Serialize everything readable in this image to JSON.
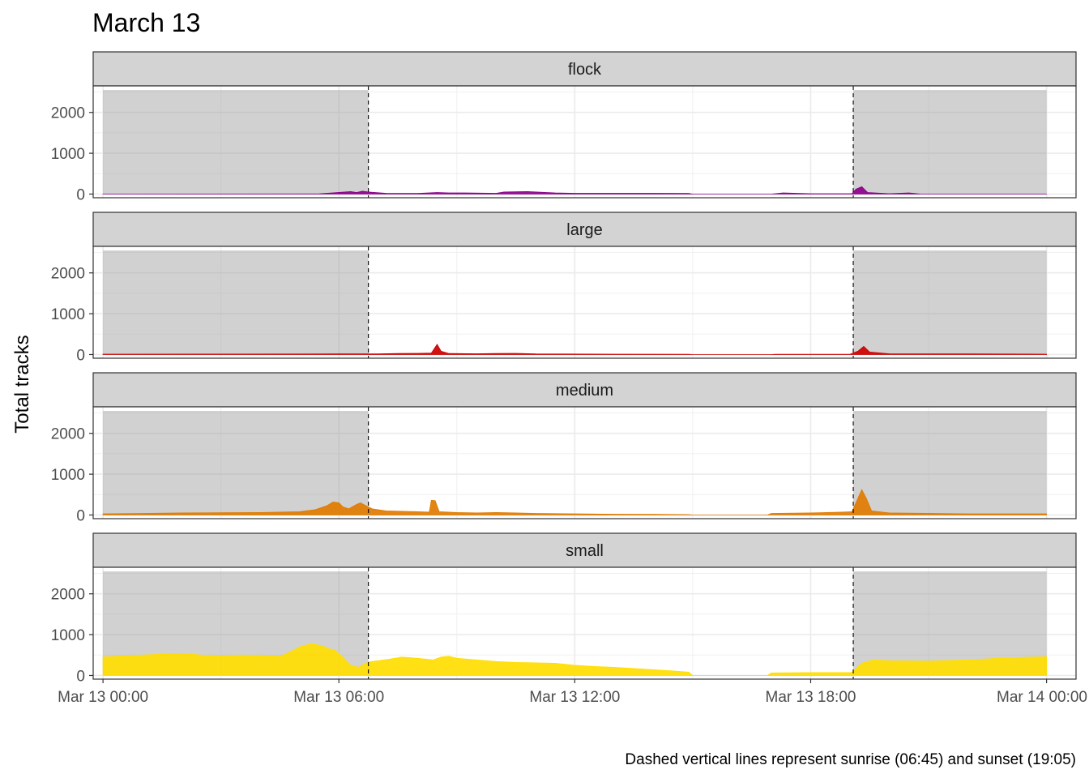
{
  "chart_data": {
    "type": "area",
    "title": "March 13",
    "ylabel": "Total tracks",
    "xlabel": "",
    "caption": "Dashed vertical lines represent sunrise (06:45) and sunset (19:05)",
    "x_unit": "hours",
    "xlim": [
      -0.25,
      24.75
    ],
    "ylim": [
      -90,
      2650
    ],
    "y_ticks": [
      0,
      1000,
      2000
    ],
    "x_ticks": [
      {
        "hour": 0,
        "label": "Mar 13 00:00"
      },
      {
        "hour": 6,
        "label": "Mar 13 06:00"
      },
      {
        "hour": 12,
        "label": "Mar 13 12:00"
      },
      {
        "hour": 18,
        "label": "Mar 13 18:00"
      },
      {
        "hour": 24,
        "label": "Mar 14 00:00"
      }
    ],
    "sunrise_hour": 6.75,
    "sunset_hour": 19.0833,
    "night_shade": [
      {
        "from": 0,
        "to": 6.75,
        "top": 2550
      },
      {
        "from": 19.0833,
        "to": 24,
        "top": 2550
      }
    ],
    "grid": true,
    "legend": "none",
    "facets": [
      {
        "name": "flock",
        "color": "#8b008b",
        "points": [
          [
            0,
            0
          ],
          [
            5.5,
            5
          ],
          [
            6.3,
            60
          ],
          [
            6.45,
            40
          ],
          [
            6.6,
            70
          ],
          [
            6.75,
            50
          ],
          [
            7.2,
            20
          ],
          [
            8,
            15
          ],
          [
            8.5,
            40
          ],
          [
            8.8,
            30
          ],
          [
            9.2,
            30
          ],
          [
            10,
            20
          ],
          [
            10.2,
            50
          ],
          [
            10.8,
            60
          ],
          [
            11.5,
            30
          ],
          [
            12,
            20
          ],
          [
            13,
            20
          ],
          [
            14,
            20
          ],
          [
            14.9,
            15
          ],
          [
            15,
            0
          ],
          [
            17,
            0
          ],
          [
            17.3,
            30
          ],
          [
            18,
            10
          ],
          [
            19.05,
            10
          ],
          [
            19.15,
            120
          ],
          [
            19.3,
            180
          ],
          [
            19.45,
            40
          ],
          [
            20,
            10
          ],
          [
            20.5,
            30
          ],
          [
            20.8,
            0
          ],
          [
            24,
            0
          ]
        ]
      },
      {
        "name": "large",
        "color": "#cc0000",
        "points": [
          [
            0,
            10
          ],
          [
            3,
            12
          ],
          [
            6,
            15
          ],
          [
            6.75,
            15
          ],
          [
            7,
            15
          ],
          [
            7.5,
            25
          ],
          [
            8,
            30
          ],
          [
            8.35,
            35
          ],
          [
            8.5,
            250
          ],
          [
            8.6,
            80
          ],
          [
            8.8,
            25
          ],
          [
            9.5,
            20
          ],
          [
            10,
            25
          ],
          [
            10.5,
            30
          ],
          [
            11,
            15
          ],
          [
            13,
            10
          ],
          [
            14.9,
            8
          ],
          [
            15,
            0
          ],
          [
            17,
            0
          ],
          [
            17.1,
            8
          ],
          [
            19,
            8
          ],
          [
            19.2,
            80
          ],
          [
            19.35,
            200
          ],
          [
            19.5,
            60
          ],
          [
            20,
            20
          ],
          [
            22,
            15
          ],
          [
            24,
            10
          ]
        ]
      },
      {
        "name": "medium",
        "color": "#e07b00",
        "points": [
          [
            0,
            30
          ],
          [
            1,
            40
          ],
          [
            2,
            50
          ],
          [
            3,
            55
          ],
          [
            4,
            60
          ],
          [
            5,
            80
          ],
          [
            5.4,
            130
          ],
          [
            5.7,
            230
          ],
          [
            5.85,
            320
          ],
          [
            6,
            300
          ],
          [
            6.1,
            200
          ],
          [
            6.25,
            150
          ],
          [
            6.45,
            260
          ],
          [
            6.55,
            300
          ],
          [
            6.7,
            220
          ],
          [
            6.85,
            150
          ],
          [
            7.2,
            100
          ],
          [
            7.6,
            90
          ],
          [
            8,
            80
          ],
          [
            8.3,
            70
          ],
          [
            8.35,
            360
          ],
          [
            8.45,
            350
          ],
          [
            8.55,
            80
          ],
          [
            9,
            60
          ],
          [
            9.5,
            50
          ],
          [
            10,
            60
          ],
          [
            10.5,
            50
          ],
          [
            11,
            40
          ],
          [
            12,
            30
          ],
          [
            13,
            20
          ],
          [
            14,
            15
          ],
          [
            14.9,
            10
          ],
          [
            15,
            0
          ],
          [
            16.9,
            0
          ],
          [
            17,
            40
          ],
          [
            18,
            50
          ],
          [
            18.8,
            70
          ],
          [
            19.05,
            80
          ],
          [
            19.15,
            300
          ],
          [
            19.3,
            620
          ],
          [
            19.42,
            400
          ],
          [
            19.55,
            100
          ],
          [
            20,
            50
          ],
          [
            22,
            30
          ],
          [
            24,
            30
          ]
        ]
      },
      {
        "name": "small",
        "color": "#ffdd00",
        "points": [
          [
            0,
            450
          ],
          [
            0.5,
            480
          ],
          [
            1,
            500
          ],
          [
            1.5,
            520
          ],
          [
            2,
            540
          ],
          [
            2.5,
            500
          ],
          [
            3,
            480
          ],
          [
            3.5,
            500
          ],
          [
            4,
            490
          ],
          [
            4.5,
            470
          ],
          [
            4.7,
            550
          ],
          [
            5,
            700
          ],
          [
            5.3,
            780
          ],
          [
            5.6,
            720
          ],
          [
            5.75,
            650
          ],
          [
            5.9,
            620
          ],
          [
            6.1,
            450
          ],
          [
            6.3,
            250
          ],
          [
            6.5,
            200
          ],
          [
            6.75,
            330
          ],
          [
            7,
            360
          ],
          [
            7.3,
            400
          ],
          [
            7.6,
            450
          ],
          [
            8,
            420
          ],
          [
            8.4,
            380
          ],
          [
            8.6,
            450
          ],
          [
            8.8,
            470
          ],
          [
            9,
            420
          ],
          [
            9.5,
            380
          ],
          [
            10,
            340
          ],
          [
            10.5,
            320
          ],
          [
            11,
            310
          ],
          [
            11.5,
            300
          ],
          [
            12,
            250
          ],
          [
            12.5,
            220
          ],
          [
            13,
            200
          ],
          [
            13.5,
            170
          ],
          [
            14,
            140
          ],
          [
            14.5,
            110
          ],
          [
            14.9,
            80
          ],
          [
            15,
            0
          ],
          [
            16.9,
            0
          ],
          [
            17,
            60
          ],
          [
            18,
            70
          ],
          [
            19.05,
            70
          ],
          [
            19.3,
            300
          ],
          [
            19.6,
            380
          ],
          [
            20,
            360
          ],
          [
            21,
            350
          ],
          [
            22,
            380
          ],
          [
            23,
            430
          ],
          [
            24,
            460
          ]
        ]
      }
    ]
  }
}
